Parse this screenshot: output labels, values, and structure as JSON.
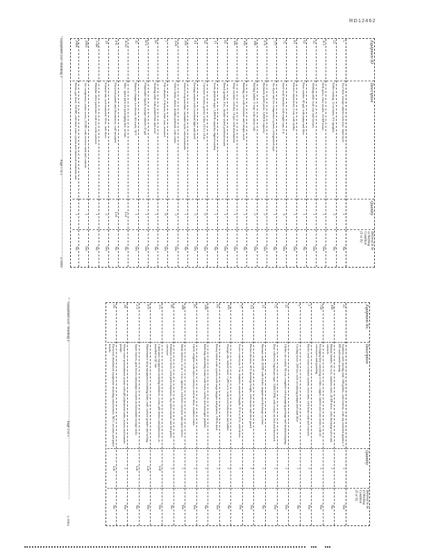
{
  "page": {
    "doc_id": "RD12462"
  },
  "colors": {
    "ink": "#161616",
    "gridline": "#5a5a5a",
    "paper": "#ffffff"
  },
  "tables": [
    {
      "name": "equipment-schedule-page-1",
      "headers": {
        "id": "Equipment ID",
        "description": "Description",
        "quantity": "Quantity",
        "condition": "Believed to be\nin Working\nCondition\n(Y or N)"
      },
      "footer": {
        "left": "Equipment List - Building 1",
        "center": "Page 1 of 2",
        "right": "L-0961"
      },
      "rows": [
        {
          "id": "5",
          "description": "Two-door storage cabinet with misc. hand tools",
          "quantity": "1",
          "condition": "No"
        },
        {
          "id": "22",
          "description": "Pallet racking, 12 sections, 8 ft uprights",
          "quantity": "2",
          "condition": "No"
        },
        {
          "id": "A-1",
          "description": "Drill press, floor model, 3/4 HP motor",
          "quantity": "1",
          "condition": "Yes"
        },
        {
          "id": "35",
          "description": "Welding table with vise and fixtures",
          "quantity": "1",
          "condition": "Yes"
        },
        {
          "id": "62",
          "description": "Parts washer, 40 gal, with pump and filter",
          "quantity": "1",
          "condition": "No"
        },
        {
          "id": "83",
          "description": "Electric chain hoist, 2 ton, with trolley",
          "quantity": "1",
          "condition": "Yes"
        },
        {
          "id": "75",
          "description": "Steel work benches with maple tops, 6 ft",
          "quantity": "4",
          "condition": "Yes"
        },
        {
          "id": "777",
          "description": "Air dryer unit for compressor system, refrigerated type",
          "quantity": "1",
          "condition": "No"
        },
        {
          "id": "474",
          "description": "Hydraulic pallet jacks, 5,000 lb capacity",
          "quantity": "2",
          "condition": "Yes"
        },
        {
          "id": "186",
          "description": "Rolling ladder, 5-step, with safety rails",
          "quantity": "2",
          "condition": "Yes"
        },
        {
          "id": "105",
          "description": "Banding cart with tensioner and crimper tools",
          "quantity": "1",
          "condition": "No"
        },
        {
          "id": "185",
          "description": "Shop vacuum, wet/dry, 16 gal, with attachments",
          "quantity": "1",
          "condition": "Yes"
        },
        {
          "id": "65",
          "description": "Bench grinder, 8 in., double wheel, pedestal mount",
          "quantity": "1",
          "condition": "Yes"
        },
        {
          "id": "13",
          "description": "Scale, platform type, 1,000 lb capacity, digital readout",
          "quantity": "1",
          "condition": "No"
        },
        {
          "id": "92",
          "description": "Conveyor section, gravity roller, 10 ft x 18 in.",
          "quantity": "6",
          "condition": "Yes"
        },
        {
          "id": "44",
          "description": "Packing station with overhead light and shelf",
          "quantity": "2",
          "condition": "Yes"
        },
        {
          "id": "203",
          "description": "Stretch wrap machine, turntable style, semi-automatic",
          "quantity": "1",
          "condition": "No"
        },
        {
          "id": "35A",
          "description": "Office desks, metal, double pedestal, with chairs",
          "quantity": "3",
          "condition": "Yes"
        },
        {
          "id": "7",
          "description": "File cabinets, 4-drawer, letter size, assorted",
          "quantity": "8",
          "condition": "Yes"
        },
        {
          "id": "85",
          "description": "Drafting table with parallel bar and stool",
          "quantity": "1",
          "condition": "No"
        },
        {
          "id": "B-2",
          "description": "Flammable liquids storage cabinet, 45 gal",
          "quantity": "1",
          "condition": "Yes"
        },
        {
          "id": "45",
          "description": "Battery charger for electric lift truck, 36 V",
          "quantity": "1",
          "condition": "Yes"
        },
        {
          "id": "A-41",
          "description": "Misc. spare parts for packaging line, in bins",
          "quantity": "Lot",
          "condition": "No"
        },
        {
          "id": "4-8",
          "description": "Electrical panels and disconnects, wall mounted",
          "quantity": "Lot",
          "condition": "No"
        },
        {
          "id": "19",
          "description": "Exhaust fan, roof mounted, 36 in., belt drive",
          "quantity": "2",
          "condition": "Yes"
        },
        {
          "id": "1-4B",
          "description": "Modular office partitions with two work surfaces",
          "quantity": "1",
          "condition": "No"
        },
        {
          "id": "2004",
          "description": "Air compressor, rotary screw, 25 HP, with receiver tank and controls",
          "quantity": "1",
          "condition": "Yes"
        },
        {
          "id": "2008",
          "description": "Boiler, gas fired, 150 HP, with feed water system and chemical treatment unit",
          "quantity": "1",
          "condition": "No"
        }
      ]
    },
    {
      "name": "equipment-schedule-page-2",
      "headers": {
        "id": "Equipment No.",
        "description": "Description",
        "quantity": "Quantity",
        "condition": "Believed to be\nin Working\nCondition\n(Y or N)"
      },
      "footer": {
        "left": "Equipment List - Building 2",
        "center": "Page 2 of 2",
        "right": "L-0962"
      },
      "rows": [
        {
          "id": "25",
          "description": "Stainless steel mixing tank, 500 gallon, cone bottom, with top mounted agitator, 5 HP, and transfer pump",
          "quantity": "1",
          "condition": "Yes"
        },
        {
          "id": "100",
          "description": "Ribbon blender, 50 cu ft, stainless steel, 20 HP drive, with discharge valve and controls",
          "quantity": "1",
          "condition": "No"
        },
        {
          "id": "750",
          "description": "Packaging line consisting of filler, capper, labeler and case sealer, with all conveyors and guarding",
          "quantity": "1",
          "condition": "Yes"
        },
        {
          "id": "2",
          "description": "Boiler feed water softener system, twin tank, with brine tank and controls",
          "quantity": "1",
          "condition": "Yes"
        },
        {
          "id": "7",
          "description": "Cooling tower, 200 ton, with circulating pumps and sand filter",
          "quantity": "1",
          "condition": "No"
        },
        {
          "id": "35",
          "description": "Chiller, air cooled, 60 ton, complete with pumping package and insulated piping",
          "quantity": "1",
          "condition": "Yes"
        },
        {
          "id": "75",
          "description": "Dust collector, bag house type, 5,000 CFM, with rotary air lock and ductwork",
          "quantity": "1",
          "condition": "Yes"
        },
        {
          "id": "12",
          "description": "Hammer mill, 40 HP, with feeder, magnet and discharge cyclone",
          "quantity": "1",
          "condition": "No"
        },
        {
          "id": "111",
          "description": "Bucket elevator, 40 ft discharge height, with motor and drive guard",
          "quantity": "2",
          "condition": "Yes"
        },
        {
          "id": "77",
          "description": "Screw conveyors, 9 in. diameter, assorted lengths 10 ft to 24 ft, with drives",
          "quantity": "5",
          "condition": "Yes"
        },
        {
          "id": "105",
          "description": "Storage silo, bolted steel, 1,200 cu ft, with level indicators and ladder",
          "quantity": "2",
          "condition": "No"
        },
        {
          "id": "65",
          "description": "Rotary batch scale system with surge hopper and printer, 100 lb draft",
          "quantity": "1",
          "condition": "Yes"
        },
        {
          "id": "500",
          "description": "Bulk bag unloading frame with hoist, trolley and massager paddles",
          "quantity": "1",
          "condition": "No"
        },
        {
          "id": "85",
          "description": "Check weigher with reject conveyor and air blast, stainless frame",
          "quantity": "1",
          "condition": "Yes"
        },
        {
          "id": "300",
          "description": "Metal detector, 12 in. x 6 in. aperture, with belt conveyor and reject device",
          "quantity": "1",
          "condition": "Yes"
        },
        {
          "id": "90",
          "description": "Palletizer, low level, with pallet dispenser, slip sheet inserter and full pallet conveyor",
          "quantity": "1",
          "condition": "No"
        },
        {
          "id": "3-5",
          "description": "Laboratory equipment including balances, ovens, pH meters and glassware, as installed in QC lab",
          "quantity": "Lot",
          "condition": "Yes"
        },
        {
          "id": "8-9",
          "description": "Maintenance shop equipment including lathe, mill, surface grinder and tooling",
          "quantity": "Lot",
          "condition": "Yes"
        },
        {
          "id": "2-3",
          "description": "Spare motors, gear boxes and pumps located on mezzanine storage racks",
          "quantity": "Lot",
          "condition": "No"
        },
        {
          "id": "28",
          "description": "Waste water pretreatment system with pH adjustment tanks, mixers and transfer pumps",
          "quantity": "1",
          "condition": "Yes"
        },
        {
          "id": "26",
          "description": "Electrical distribution equipment including transformers, MCC sections and panel boards",
          "quantity": "Lot",
          "condition": "No"
        }
      ]
    }
  ]
}
